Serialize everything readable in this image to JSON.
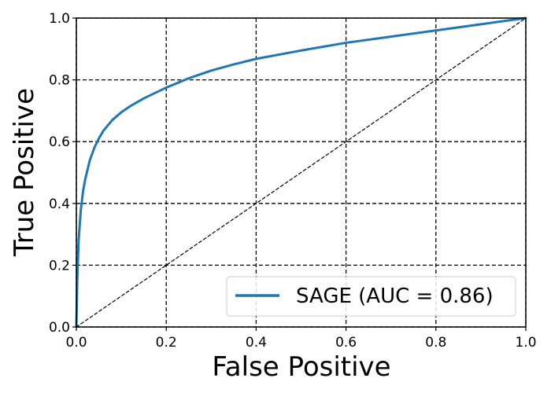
{
  "chart_data": {
    "type": "line",
    "title": "",
    "xlabel": "False Positive",
    "ylabel": "True Positive",
    "xlim": [
      0.0,
      1.0
    ],
    "ylim": [
      0.0,
      1.0
    ],
    "xticks": [
      "0.0",
      "0.2",
      "0.4",
      "0.6",
      "0.8",
      "1.0"
    ],
    "yticks": [
      "0.0",
      "0.2",
      "0.4",
      "0.6",
      "0.8",
      "1.0"
    ],
    "grid": true,
    "legend_position": "bottom-right",
    "series": [
      {
        "name": "SAGE (AUC = 0.86)",
        "color": "#1f77b4",
        "x": [
          0.0,
          0.002,
          0.005,
          0.01,
          0.015,
          0.02,
          0.03,
          0.04,
          0.05,
          0.06,
          0.08,
          0.1,
          0.12,
          0.15,
          0.2,
          0.25,
          0.3,
          0.35,
          0.4,
          0.5,
          0.6,
          0.7,
          0.8,
          0.9,
          1.0
        ],
        "y": [
          0.0,
          0.15,
          0.28,
          0.38,
          0.44,
          0.48,
          0.54,
          0.58,
          0.61,
          0.635,
          0.67,
          0.695,
          0.715,
          0.74,
          0.775,
          0.805,
          0.83,
          0.85,
          0.868,
          0.895,
          0.92,
          0.94,
          0.96,
          0.98,
          1.0
        ]
      },
      {
        "name": "",
        "color": "#000000",
        "style": "dashed",
        "x": [
          0.0,
          1.0
        ],
        "y": [
          0.0,
          1.0
        ]
      }
    ]
  }
}
